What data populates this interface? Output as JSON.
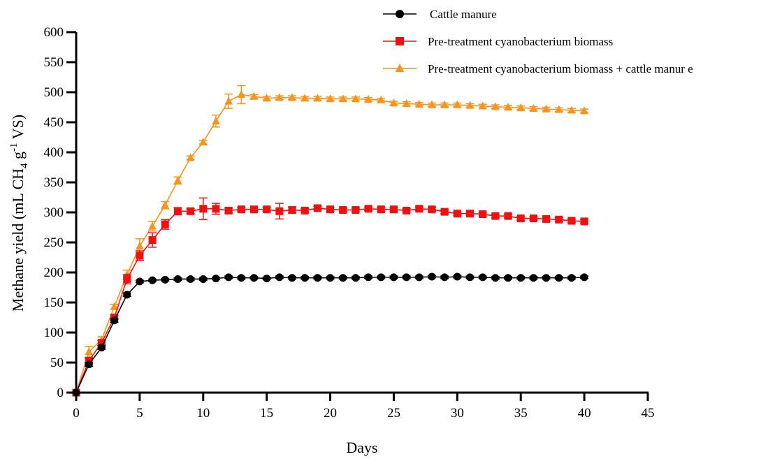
{
  "chart_data": {
    "type": "line",
    "title": "",
    "xlabel": "Days",
    "ylabel": {
      "main": "Methane yield (mL CH",
      "sub": "4",
      "mid": " g",
      "sup": "-1",
      "end": " VS)"
    },
    "xlim": [
      0,
      45
    ],
    "ylim": [
      0,
      600
    ],
    "xticks": [
      0,
      5,
      10,
      15,
      20,
      25,
      30,
      35,
      40,
      45
    ],
    "yticks": [
      0,
      50,
      100,
      150,
      200,
      250,
      300,
      350,
      400,
      450,
      500,
      550,
      600
    ],
    "grid": false,
    "legend_position": "top-right",
    "series": [
      {
        "name": "Cattle manure",
        "color": "#000000",
        "marker": "circle",
        "x": [
          0,
          1,
          2,
          3,
          4,
          5,
          6,
          7,
          8,
          9,
          10,
          11,
          12,
          13,
          14,
          15,
          16,
          17,
          18,
          19,
          20,
          21,
          22,
          23,
          24,
          25,
          26,
          27,
          28,
          29,
          30,
          31,
          32,
          33,
          34,
          35,
          36,
          37,
          38,
          39,
          40
        ],
        "y": [
          0,
          47,
          75,
          120,
          163,
          185,
          187,
          188,
          189,
          189,
          189,
          190,
          192,
          191,
          191,
          190,
          192,
          191,
          191,
          191,
          191,
          191,
          191,
          192,
          192,
          192,
          192,
          192,
          193,
          192,
          193,
          192,
          192,
          191,
          191,
          191,
          191,
          191,
          191,
          191,
          192
        ],
        "err": [
          0,
          3,
          3,
          3,
          3,
          2,
          2,
          2,
          2,
          2,
          2,
          2,
          2,
          2,
          2,
          2,
          2,
          2,
          2,
          2,
          2,
          2,
          2,
          2,
          2,
          2,
          2,
          2,
          2,
          2,
          2,
          2,
          2,
          2,
          2,
          2,
          2,
          2,
          2,
          2,
          2
        ]
      },
      {
        "name": "Pre-treatment cyanobacterium biomass",
        "color": "#ee1111",
        "marker": "square",
        "x": [
          0,
          1,
          2,
          3,
          4,
          5,
          6,
          7,
          8,
          9,
          10,
          11,
          12,
          13,
          14,
          15,
          16,
          17,
          18,
          19,
          20,
          21,
          22,
          23,
          24,
          25,
          26,
          27,
          28,
          29,
          30,
          31,
          32,
          33,
          34,
          35,
          36,
          37,
          38,
          39,
          40
        ],
        "y": [
          0,
          53,
          83,
          125,
          189,
          228,
          254,
          280,
          302,
          302,
          306,
          306,
          303,
          305,
          305,
          305,
          302,
          304,
          303,
          307,
          305,
          304,
          304,
          306,
          305,
          305,
          303,
          306,
          305,
          301,
          298,
          298,
          297,
          294,
          294,
          290,
          290,
          289,
          288,
          286,
          285
        ],
        "err": [
          0,
          4,
          4,
          4,
          8,
          8,
          12,
          8,
          6,
          4,
          18,
          9,
          4,
          3,
          3,
          3,
          13,
          5,
          3,
          3,
          3,
          3,
          3,
          3,
          3,
          3,
          3,
          3,
          3,
          3,
          3,
          3,
          3,
          3,
          3,
          3,
          3,
          3,
          3,
          3,
          3
        ]
      },
      {
        "name": "Pre-treatment cyanobacterium biomass + cattle manur e",
        "color": "#f7941d",
        "marker": "triangle",
        "x": [
          0,
          1,
          2,
          3,
          4,
          5,
          6,
          7,
          8,
          9,
          10,
          11,
          12,
          13,
          14,
          15,
          16,
          17,
          18,
          19,
          20,
          21,
          22,
          23,
          24,
          25,
          26,
          27,
          28,
          29,
          30,
          31,
          32,
          33,
          34,
          35,
          36,
          37,
          38,
          39,
          40
        ],
        "y": [
          0,
          68,
          88,
          143,
          196,
          244,
          277,
          312,
          353,
          391,
          417,
          452,
          485,
          496,
          493,
          490,
          491,
          491,
          490,
          490,
          489,
          489,
          489,
          488,
          487,
          482,
          481,
          480,
          479,
          479,
          479,
          478,
          477,
          476,
          475,
          474,
          473,
          472,
          471,
          470,
          469
        ],
        "err": [
          0,
          9,
          5,
          4,
          8,
          12,
          8,
          6,
          6,
          3,
          3,
          10,
          12,
          15,
          3,
          3,
          3,
          3,
          3,
          3,
          3,
          3,
          3,
          3,
          3,
          3,
          3,
          3,
          3,
          3,
          3,
          3,
          3,
          3,
          3,
          3,
          3,
          3,
          3,
          3,
          3
        ]
      }
    ]
  }
}
